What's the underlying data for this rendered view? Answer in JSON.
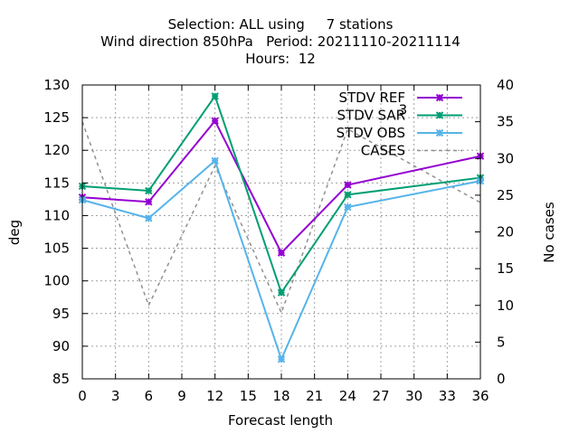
{
  "chart_data": {
    "type": "line",
    "title_lines": [
      "Selection: ALL using     7 stations",
      "Wind direction 850hPa   Period: 20211110-20211114",
      "Hours:  12"
    ],
    "xlabel": "Forecast length",
    "ylabel": "deg",
    "y2label": "No cases",
    "xlim": [
      0,
      36
    ],
    "ylim": [
      85,
      130
    ],
    "y2lim": [
      0,
      40
    ],
    "xticks": [
      0,
      3,
      6,
      9,
      12,
      15,
      18,
      21,
      24,
      27,
      30,
      33,
      36
    ],
    "yticks": [
      85,
      90,
      95,
      100,
      105,
      110,
      115,
      120,
      125,
      130
    ],
    "y2ticks": [
      0,
      5,
      10,
      15,
      20,
      25,
      30,
      35,
      40
    ],
    "grid": true,
    "legend_position": "top-right",
    "annotations": [
      {
        "text": "3",
        "x": 29,
        "y": 126.2
      }
    ],
    "series": [
      {
        "name": "STDV REF",
        "color": "#9400d3",
        "marker": "star",
        "axis": "y",
        "x": [
          0,
          6,
          12,
          18,
          24,
          36
        ],
        "values": [
          112.8,
          112.1,
          124.5,
          104.3,
          114.7,
          119.1
        ]
      },
      {
        "name": "STDV SAR",
        "color": "#009e73",
        "marker": "star",
        "axis": "y",
        "x": [
          0,
          6,
          12,
          18,
          24,
          36
        ],
        "values": [
          114.5,
          113.8,
          128.3,
          98.2,
          113.2,
          115.8
        ]
      },
      {
        "name": "STDV OBS",
        "color": "#56b4e9",
        "marker": "star",
        "axis": "y",
        "x": [
          0,
          6,
          12,
          18,
          24,
          36
        ],
        "values": [
          112.4,
          109.6,
          118.4,
          88.0,
          111.3,
          115.3
        ]
      },
      {
        "name": "CASES",
        "color": "#909090",
        "marker": "none",
        "dashed": true,
        "axis": "y2",
        "x": [
          0,
          6,
          12,
          18,
          24,
          36
        ],
        "values": [
          35,
          10,
          29,
          9,
          34,
          24
        ]
      }
    ]
  }
}
